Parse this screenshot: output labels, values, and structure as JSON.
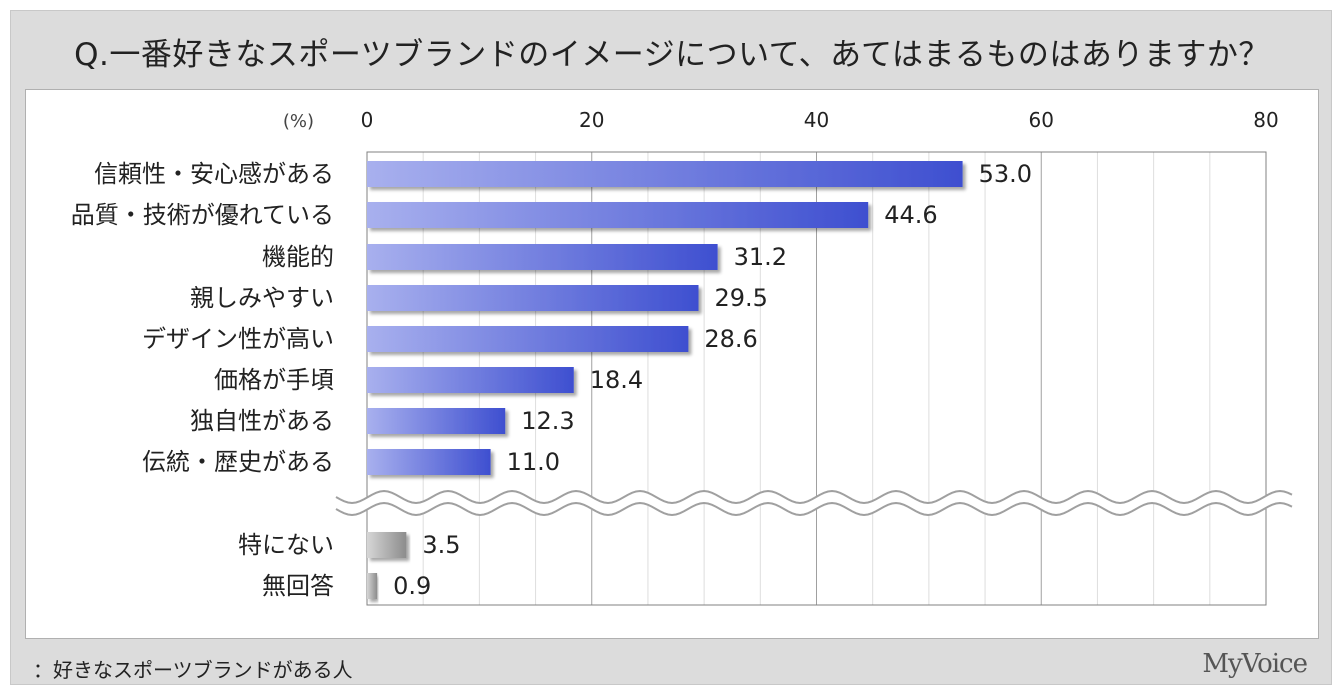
{
  "title": "Q.一番好きなスポーツブランドのイメージについて、あてはまるものはありますか？",
  "footnote": "：好きなスポーツブランドがある人",
  "logo_text": "MyVoice",
  "colors": {
    "bar_main_start": "#a8b0ee",
    "bar_main_end": "#3e4fd0",
    "bar_gray_start": "#d6d6d6",
    "bar_gray_end": "#8c8c8c",
    "grid": "#c8c8c8",
    "frame_bg": "#dcdcdc"
  },
  "chart_data": {
    "type": "bar",
    "orientation": "horizontal",
    "unit_label": "(%)",
    "xlim": [
      0,
      80
    ],
    "ticks": [
      "0",
      "20",
      "40",
      "60",
      "80"
    ],
    "grid": true,
    "axis_break_between_groups": true,
    "categories": [
      "信頼性・安心感がある",
      "品質・技術が優れている",
      "機能的",
      "親しみやすい",
      "デザイン性が高い",
      "価格が手頃",
      "独自性がある",
      "伝統・歴史がある",
      "特にない",
      "無回答"
    ],
    "values": [
      53.0,
      44.6,
      31.2,
      29.5,
      28.6,
      18.4,
      12.3,
      11.0,
      3.5,
      0.9
    ],
    "value_labels": [
      "53.0",
      "44.6",
      "31.2",
      "29.5",
      "28.6",
      "18.4",
      "12.3",
      "11.0",
      "3.5",
      "0.9"
    ],
    "groups": [
      "main",
      "main",
      "main",
      "main",
      "main",
      "main",
      "main",
      "main",
      "other",
      "other"
    ]
  }
}
